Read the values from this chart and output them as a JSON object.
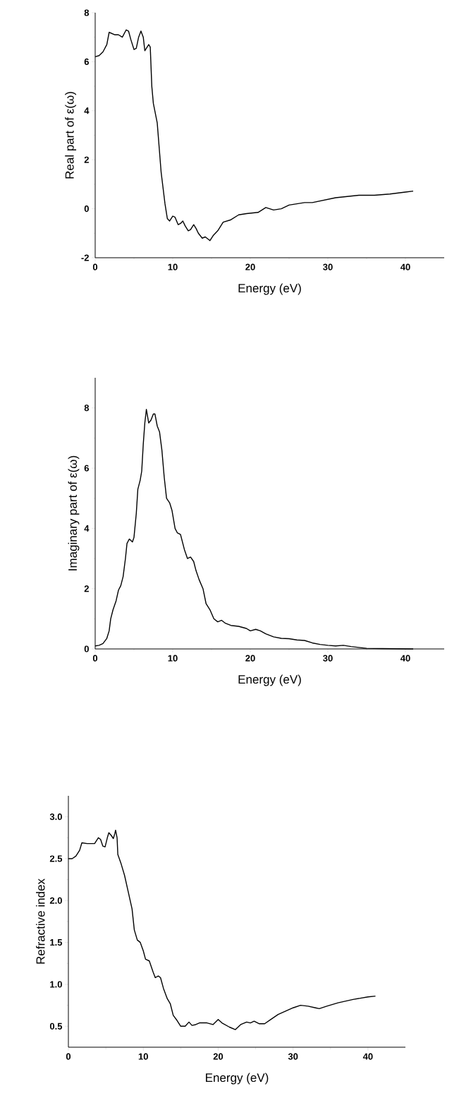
{
  "chart_data": [
    {
      "type": "line",
      "xlabel": "Energy (eV)",
      "ylabel": "Real part of ε(ω)",
      "xlim": [
        0,
        45
      ],
      "ylim": [
        -2,
        8
      ],
      "xticks": [
        0,
        10,
        20,
        30,
        40
      ],
      "yticks": [
        -2,
        0,
        2,
        4,
        6,
        8
      ],
      "color": "#000000",
      "x": [
        0,
        0.5,
        1,
        1.5,
        1.8,
        2.5,
        3,
        3.5,
        4.0,
        4.3,
        4.6,
        5.0,
        5.3,
        5.6,
        5.9,
        6.2,
        6.4,
        6.7,
        6.9,
        7.1,
        7.3,
        7.5,
        8.0,
        8.5,
        9.0,
        9.3,
        9.6,
        10.0,
        10.3,
        10.7,
        11.0,
        11.3,
        11.6,
        12.0,
        12.3,
        12.7,
        13.0,
        13.3,
        13.8,
        14.2,
        14.6,
        14.8,
        15.2,
        15.8,
        16.5,
        17.5,
        18.5,
        19.5,
        21,
        22,
        23,
        24,
        25,
        26,
        27,
        28,
        29.5,
        31,
        32.5,
        34,
        36,
        38,
        40,
        41
      ],
      "values": [
        6.2,
        6.25,
        6.4,
        6.7,
        7.2,
        7.1,
        7.1,
        7.0,
        7.3,
        7.25,
        6.9,
        6.5,
        6.55,
        7.0,
        7.25,
        7.0,
        6.45,
        6.6,
        6.7,
        6.6,
        5.0,
        4.3,
        3.5,
        1.5,
        0.2,
        -0.4,
        -0.5,
        -0.3,
        -0.35,
        -0.65,
        -0.6,
        -0.5,
        -0.7,
        -0.9,
        -0.85,
        -0.65,
        -0.8,
        -1.0,
        -1.2,
        -1.15,
        -1.25,
        -1.3,
        -1.1,
        -0.9,
        -0.55,
        -0.45,
        -0.25,
        -0.2,
        -0.15,
        0.05,
        -0.05,
        0.0,
        0.15,
        0.2,
        0.25,
        0.25,
        0.35,
        0.45,
        0.5,
        0.55,
        0.55,
        0.6,
        0.68,
        0.72
      ]
    },
    {
      "type": "line",
      "xlabel": "Energy (eV)",
      "ylabel": "Imaginary part of ε(ω)",
      "xlim": [
        0,
        45
      ],
      "ylim": [
        0,
        9
      ],
      "xticks": [
        0,
        10,
        20,
        30,
        40
      ],
      "yticks": [
        0,
        2,
        4,
        6,
        8
      ],
      "color": "#000000",
      "x": [
        0,
        0.5,
        1,
        1.5,
        1.8,
        2,
        2.3,
        2.7,
        3,
        3.3,
        3.6,
        3.9,
        4.1,
        4.4,
        4.8,
        5.0,
        5.3,
        5.5,
        5.8,
        6.0,
        6.2,
        6.4,
        6.6,
        6.9,
        7.2,
        7.5,
        7.7,
        8.0,
        8.3,
        8.6,
        8.9,
        9.2,
        9.6,
        9.9,
        10.3,
        10.6,
        11.0,
        11.5,
        11.9,
        12.3,
        12.7,
        13.0,
        13.4,
        13.9,
        14.3,
        14.8,
        15.3,
        15.8,
        16.3,
        16.8,
        17.5,
        18.5,
        19.5,
        20,
        20.7,
        21.3,
        22,
        23,
        24,
        25,
        26,
        27,
        28,
        29,
        30,
        31,
        32,
        33,
        34,
        35,
        37,
        41
      ],
      "values": [
        0.1,
        0.12,
        0.18,
        0.35,
        0.6,
        1.0,
        1.3,
        1.6,
        1.95,
        2.1,
        2.4,
        3.0,
        3.5,
        3.65,
        3.55,
        3.7,
        4.5,
        5.3,
        5.6,
        5.9,
        6.8,
        7.5,
        7.95,
        7.5,
        7.6,
        7.8,
        7.8,
        7.4,
        7.2,
        6.6,
        5.7,
        5.0,
        4.85,
        4.6,
        4.0,
        3.85,
        3.8,
        3.3,
        3.0,
        3.05,
        2.9,
        2.6,
        2.3,
        2.0,
        1.5,
        1.3,
        1.0,
        0.9,
        0.95,
        0.85,
        0.78,
        0.75,
        0.68,
        0.6,
        0.65,
        0.6,
        0.5,
        0.4,
        0.35,
        0.34,
        0.3,
        0.28,
        0.2,
        0.15,
        0.12,
        0.1,
        0.12,
        0.08,
        0.05,
        0.02,
        0.01,
        0.0
      ]
    },
    {
      "type": "line",
      "xlabel": "Energy (eV)",
      "ylabel": "Refractive index",
      "xlim": [
        0,
        45
      ],
      "ylim": [
        0.25,
        3.25
      ],
      "xticks": [
        0,
        10,
        20,
        30,
        40
      ],
      "yticks": [
        0.5,
        {
          "value": 1.0,
          "label": "1.0"
        },
        1.5,
        {
          "value": 2.0,
          "label": "2.0"
        },
        2.5,
        {
          "value": 3.0,
          "label": "3.0"
        }
      ],
      "color": "#000000",
      "x": [
        0,
        0.5,
        1,
        1.5,
        1.8,
        2.5,
        3,
        3.5,
        4,
        4.3,
        4.6,
        4.9,
        5.2,
        5.4,
        5.7,
        6.0,
        6.2,
        6.3,
        6.5,
        6.6,
        7,
        7.5,
        8,
        8.5,
        8.8,
        9.2,
        9.6,
        10,
        10.3,
        10.8,
        11.3,
        11.6,
        12,
        12.3,
        12.7,
        13.2,
        13.6,
        14,
        14.5,
        15,
        15.6,
        16.1,
        16.5,
        17,
        17.5,
        18.5,
        19.3,
        20,
        20.5,
        21.5,
        22.3,
        23,
        23.8,
        24.3,
        24.8,
        25.5,
        26.2,
        27,
        28,
        29,
        30,
        31,
        32,
        33,
        33.5,
        34.5,
        36,
        38,
        40,
        41
      ],
      "values": [
        2.5,
        2.5,
        2.53,
        2.6,
        2.69,
        2.68,
        2.68,
        2.68,
        2.75,
        2.73,
        2.65,
        2.64,
        2.75,
        2.81,
        2.78,
        2.74,
        2.8,
        2.84,
        2.75,
        2.55,
        2.45,
        2.3,
        2.1,
        1.9,
        1.65,
        1.53,
        1.5,
        1.4,
        1.3,
        1.28,
        1.15,
        1.08,
        1.1,
        1.08,
        0.95,
        0.83,
        0.77,
        0.63,
        0.57,
        0.5,
        0.5,
        0.55,
        0.51,
        0.52,
        0.54,
        0.54,
        0.52,
        0.58,
        0.54,
        0.49,
        0.46,
        0.52,
        0.55,
        0.54,
        0.56,
        0.53,
        0.53,
        0.58,
        0.64,
        0.68,
        0.72,
        0.75,
        0.74,
        0.72,
        0.71,
        0.74,
        0.78,
        0.82,
        0.85,
        0.86
      ]
    }
  ]
}
